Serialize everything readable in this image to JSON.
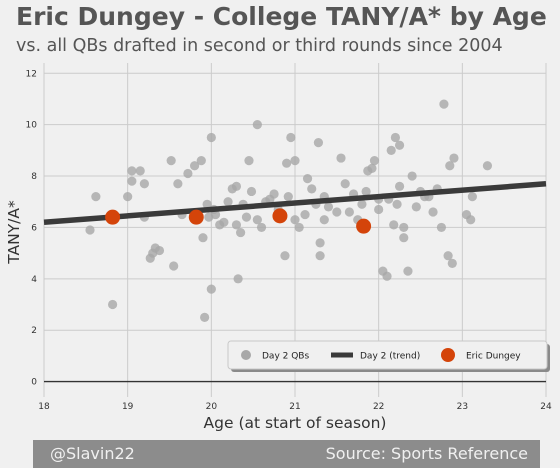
{
  "title": "Eric Dungey - College TANY/A* by Age",
  "subtitle": "vs. all QBs drafted in second or third rounds since 2004",
  "footer": {
    "handle": "@Slavin22",
    "source": "Source: Sports Reference"
  },
  "colors": {
    "background": "#f0f0f0",
    "grid": "#cbcbcb",
    "day2_points": "#a8a8a8",
    "trend": "#3a3a3a",
    "dungey": "#d4440a",
    "footer_bar": "#8c8c8c"
  },
  "chart_data": {
    "type": "scatter",
    "xlabel": "Age (at start of season)",
    "ylabel": "TANY/A*",
    "xlim": [
      18,
      24
    ],
    "ylim": [
      -0.6,
      12.4
    ],
    "xticks": [
      18,
      19,
      20,
      21,
      22,
      23,
      24
    ],
    "yticks": [
      0,
      2,
      4,
      6,
      8,
      10,
      12
    ],
    "grid": true,
    "legend_position": "bottom-right",
    "series": [
      {
        "name": "Day 2 QBs",
        "kind": "scatter",
        "points": [
          [
            18.55,
            5.9
          ],
          [
            18.62,
            7.2
          ],
          [
            18.82,
            3.0
          ],
          [
            19.0,
            7.2
          ],
          [
            19.05,
            8.2
          ],
          [
            19.05,
            7.8
          ],
          [
            19.15,
            8.2
          ],
          [
            19.2,
            7.7
          ],
          [
            19.2,
            6.4
          ],
          [
            19.27,
            4.8
          ],
          [
            19.3,
            5.0
          ],
          [
            19.33,
            5.2
          ],
          [
            19.38,
            5.1
          ],
          [
            19.52,
            8.6
          ],
          [
            19.55,
            4.5
          ],
          [
            19.6,
            7.7
          ],
          [
            19.65,
            6.5
          ],
          [
            19.72,
            8.1
          ],
          [
            19.8,
            8.4
          ],
          [
            19.88,
            8.6
          ],
          [
            19.9,
            5.6
          ],
          [
            19.92,
            2.5
          ],
          [
            19.95,
            6.9
          ],
          [
            19.97,
            6.4
          ],
          [
            20.0,
            9.5
          ],
          [
            20.0,
            3.6
          ],
          [
            20.03,
            6.7
          ],
          [
            20.05,
            6.5
          ],
          [
            20.1,
            6.1
          ],
          [
            20.15,
            6.2
          ],
          [
            20.2,
            7.0
          ],
          [
            20.25,
            7.5
          ],
          [
            20.3,
            7.6
          ],
          [
            20.3,
            6.1
          ],
          [
            20.32,
            4.0
          ],
          [
            20.35,
            5.8
          ],
          [
            20.38,
            6.9
          ],
          [
            20.42,
            6.4
          ],
          [
            20.45,
            8.6
          ],
          [
            20.48,
            7.4
          ],
          [
            20.55,
            10.0
          ],
          [
            20.55,
            6.3
          ],
          [
            20.6,
            6.0
          ],
          [
            20.65,
            7.0
          ],
          [
            20.7,
            7.1
          ],
          [
            20.75,
            7.3
          ],
          [
            20.8,
            6.7
          ],
          [
            20.85,
            6.5
          ],
          [
            20.88,
            4.9
          ],
          [
            20.9,
            8.5
          ],
          [
            20.92,
            7.2
          ],
          [
            20.95,
            9.5
          ],
          [
            21.0,
            6.3
          ],
          [
            21.0,
            8.6
          ],
          [
            21.05,
            6.0
          ],
          [
            21.12,
            6.5
          ],
          [
            21.15,
            7.9
          ],
          [
            21.2,
            7.5
          ],
          [
            21.25,
            6.9
          ],
          [
            21.28,
            9.3
          ],
          [
            21.3,
            5.4
          ],
          [
            21.3,
            4.9
          ],
          [
            21.35,
            7.2
          ],
          [
            21.35,
            6.3
          ],
          [
            21.4,
            6.8
          ],
          [
            21.5,
            6.6
          ],
          [
            21.55,
            8.7
          ],
          [
            21.6,
            7.7
          ],
          [
            21.65,
            6.6
          ],
          [
            21.7,
            7.3
          ],
          [
            21.75,
            6.3
          ],
          [
            21.8,
            6.9
          ],
          [
            21.85,
            7.4
          ],
          [
            21.87,
            8.2
          ],
          [
            21.92,
            8.3
          ],
          [
            21.95,
            8.6
          ],
          [
            22.0,
            7.1
          ],
          [
            22.0,
            6.7
          ],
          [
            22.05,
            4.3
          ],
          [
            22.1,
            4.1
          ],
          [
            22.12,
            7.1
          ],
          [
            22.15,
            9.0
          ],
          [
            22.18,
            6.1
          ],
          [
            22.2,
            9.5
          ],
          [
            22.22,
            6.9
          ],
          [
            22.25,
            9.2
          ],
          [
            22.25,
            7.6
          ],
          [
            22.3,
            5.6
          ],
          [
            22.3,
            6.0
          ],
          [
            22.35,
            4.3
          ],
          [
            22.4,
            8.0
          ],
          [
            22.45,
            6.8
          ],
          [
            22.5,
            7.4
          ],
          [
            22.55,
            7.2
          ],
          [
            22.6,
            7.2
          ],
          [
            22.65,
            6.6
          ],
          [
            22.7,
            7.5
          ],
          [
            22.75,
            6.0
          ],
          [
            22.78,
            10.8
          ],
          [
            22.83,
            4.9
          ],
          [
            22.85,
            8.4
          ],
          [
            22.88,
            4.6
          ],
          [
            22.9,
            8.7
          ],
          [
            23.05,
            6.5
          ],
          [
            23.1,
            6.3
          ],
          [
            23.12,
            7.2
          ],
          [
            23.3,
            8.4
          ]
        ]
      },
      {
        "name": "Day 2 (trend)",
        "kind": "line",
        "points": [
          [
            18.0,
            6.2
          ],
          [
            24.0,
            7.7
          ]
        ]
      },
      {
        "name": "Eric Dungey",
        "kind": "scatter",
        "points": [
          [
            18.82,
            6.4
          ],
          [
            19.82,
            6.4
          ],
          [
            20.82,
            6.45
          ],
          [
            21.82,
            6.05
          ]
        ]
      }
    ]
  }
}
